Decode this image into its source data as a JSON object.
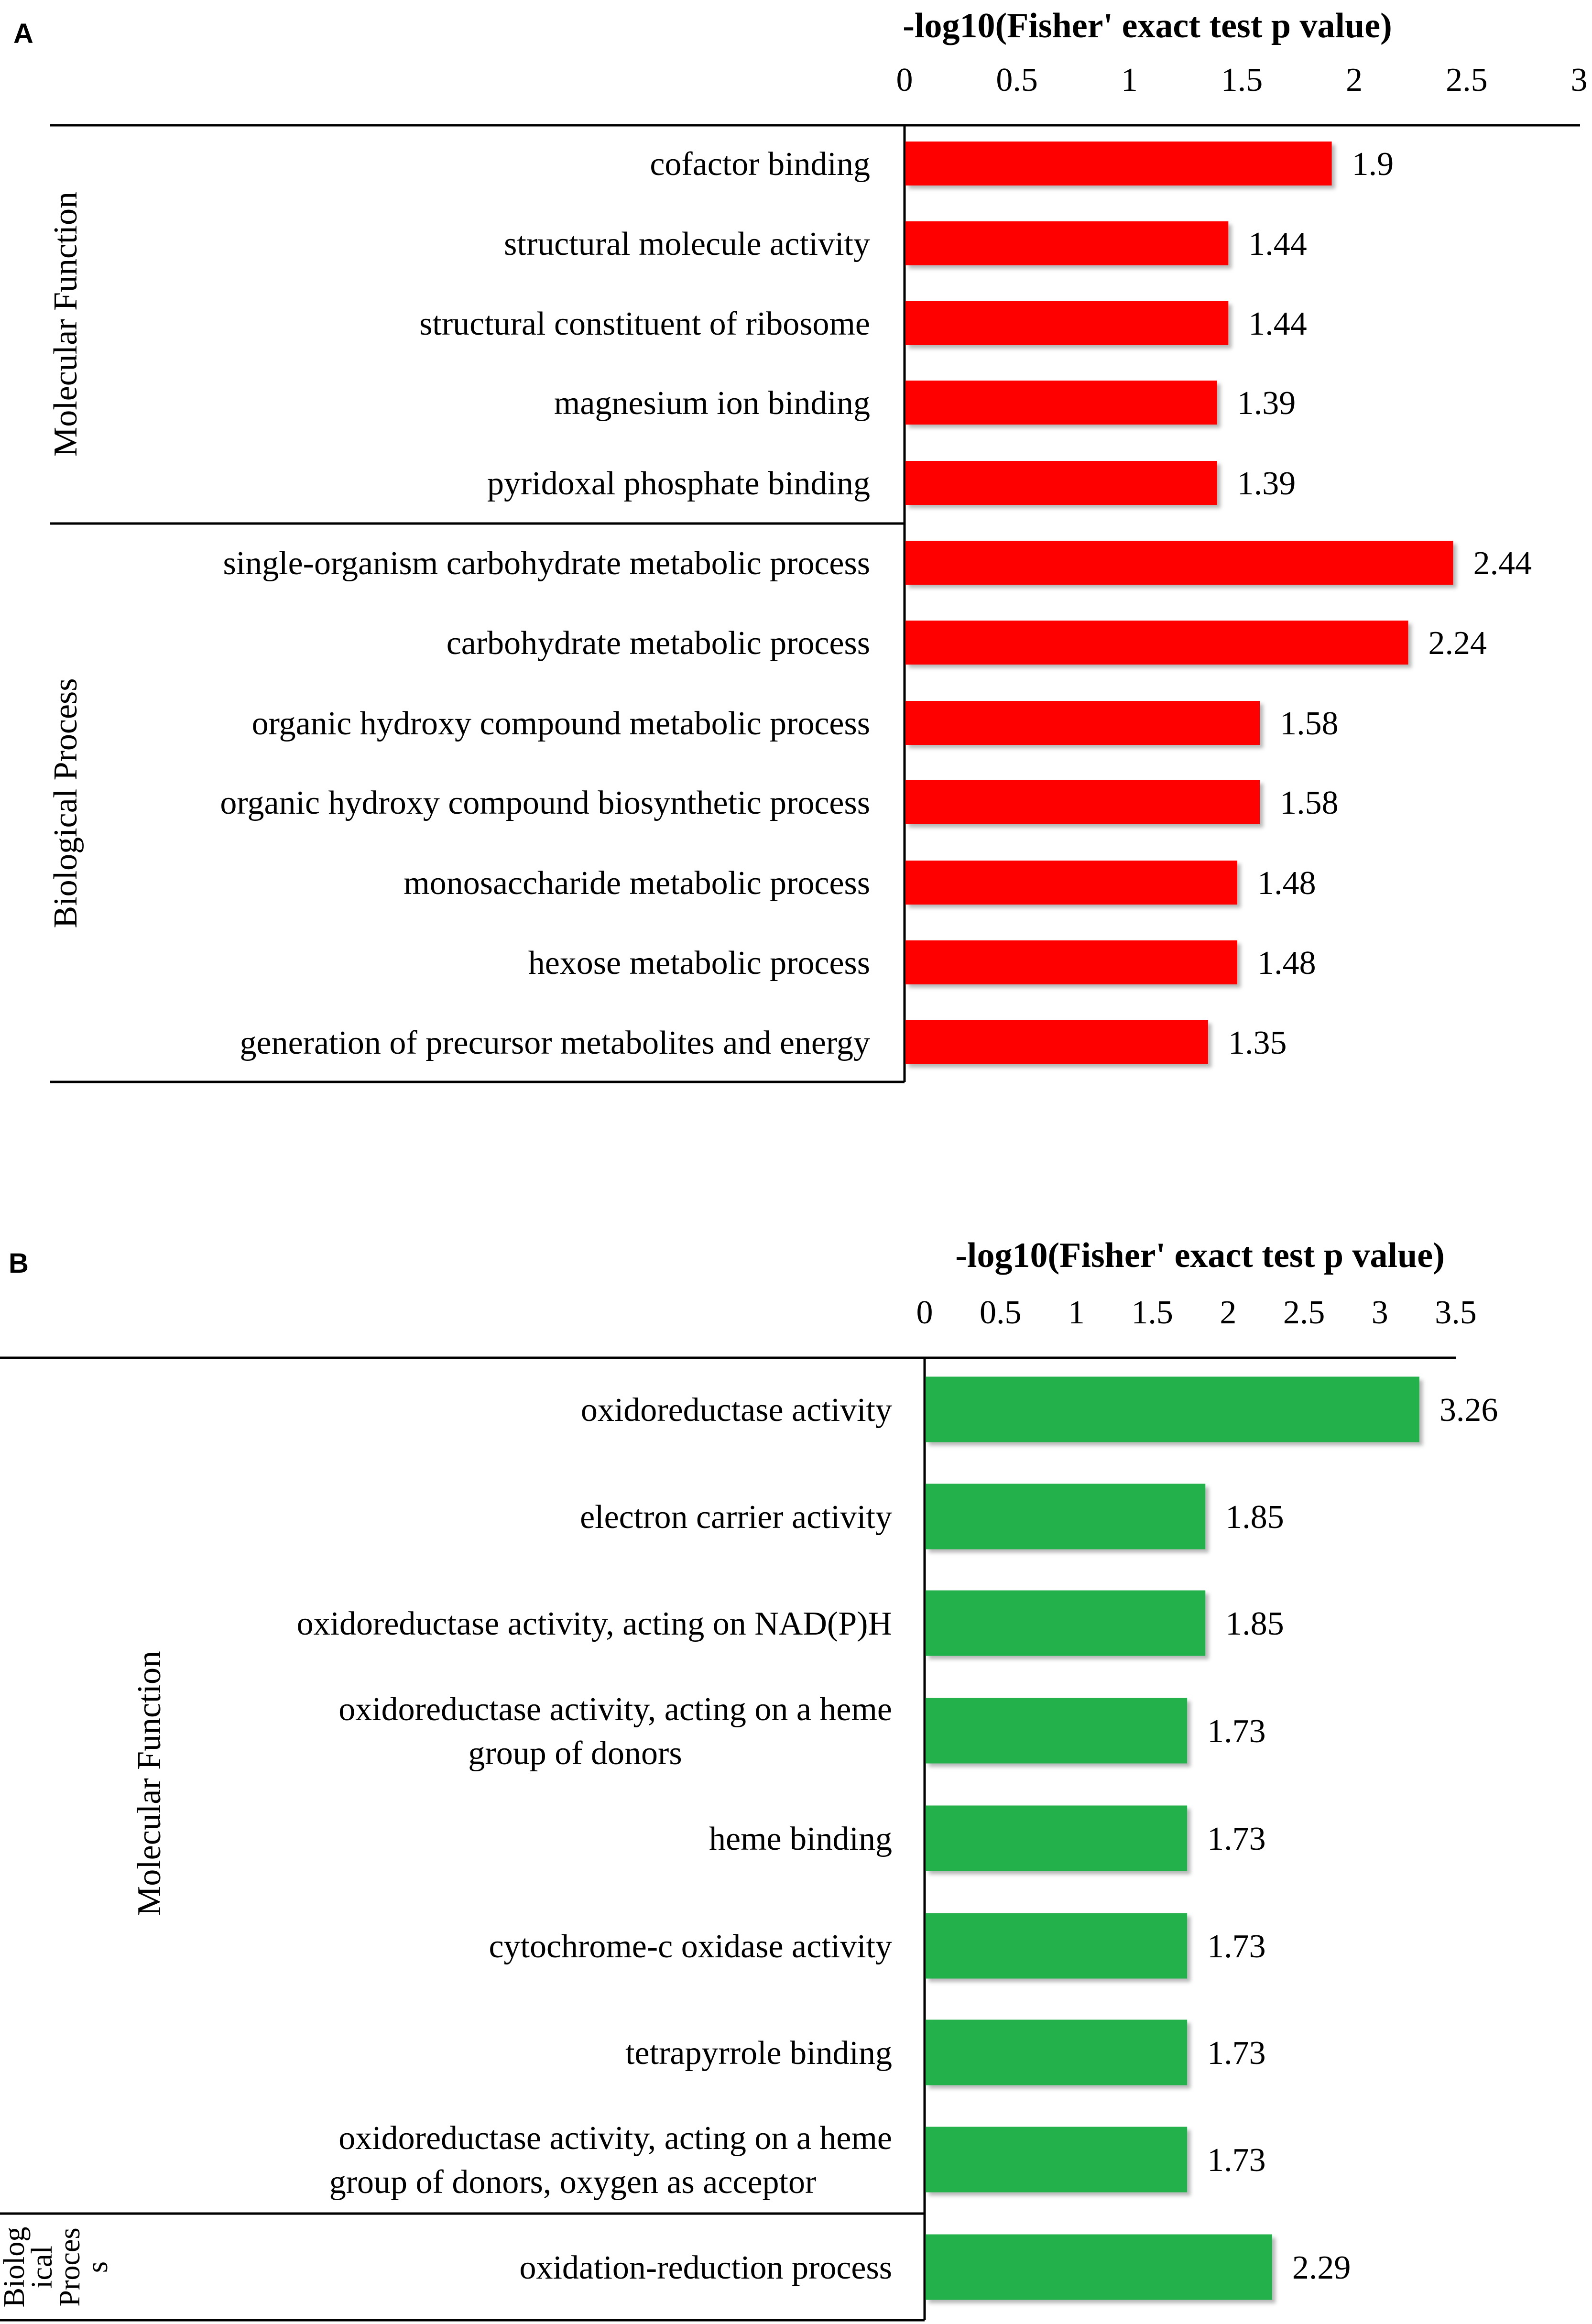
{
  "chart_data": [
    {
      "panel": "A",
      "type": "bar",
      "orientation": "horizontal",
      "title": "-log10(Fisher' exact test p value)",
      "xlim": [
        0,
        3
      ],
      "ticks": [
        "0",
        "0.5",
        "1",
        "1.5",
        "2",
        "2.5",
        "3"
      ],
      "bar_color": "#ff0000",
      "groups": [
        {
          "name": "Molecular Function",
          "name_lines": [
            "Molecular Function"
          ]
        },
        {
          "name": "Biological Process",
          "name_lines": [
            "Biological Process"
          ]
        }
      ],
      "bars": [
        {
          "group": 0,
          "label": "cofactor binding",
          "value": 1.9,
          "value_label": "1.9"
        },
        {
          "group": 0,
          "label": "structural molecule activity",
          "value": 1.44,
          "value_label": "1.44"
        },
        {
          "group": 0,
          "label": "structural constituent of ribosome",
          "value": 1.44,
          "value_label": "1.44"
        },
        {
          "group": 0,
          "label": "magnesium ion binding",
          "value": 1.39,
          "value_label": "1.39"
        },
        {
          "group": 0,
          "label": "pyridoxal phosphate binding",
          "value": 1.39,
          "value_label": "1.39"
        },
        {
          "group": 1,
          "label": "single-organism carbohydrate metabolic process",
          "value": 2.44,
          "value_label": "2.44"
        },
        {
          "group": 1,
          "label": "carbohydrate metabolic process",
          "value": 2.24,
          "value_label": "2.24"
        },
        {
          "group": 1,
          "label": "organic hydroxy compound metabolic process",
          "value": 1.58,
          "value_label": "1.58"
        },
        {
          "group": 1,
          "label": "organic hydroxy compound biosynthetic process",
          "value": 1.58,
          "value_label": "1.58"
        },
        {
          "group": 1,
          "label": "monosaccharide metabolic process",
          "value": 1.48,
          "value_label": "1.48"
        },
        {
          "group": 1,
          "label": "hexose metabolic process",
          "value": 1.48,
          "value_label": "1.48"
        },
        {
          "group": 1,
          "label": "generation of precursor metabolites and energy",
          "value": 1.35,
          "value_label": "1.35"
        }
      ]
    },
    {
      "panel": "B",
      "type": "bar",
      "orientation": "horizontal",
      "title": "-log10(Fisher' exact test p value)",
      "xlim": [
        0,
        3.5
      ],
      "ticks": [
        "0",
        "0.5",
        "1",
        "1.5",
        "2",
        "2.5",
        "3",
        "3.5"
      ],
      "bar_color": "#22b14c",
      "groups": [
        {
          "name": "Molecular Function",
          "name_lines": [
            "Molecular Function"
          ]
        },
        {
          "name": "Biological Process",
          "name_lines": [
            "Biolog",
            "ical",
            "Proces",
            "s"
          ]
        }
      ],
      "bars": [
        {
          "group": 0,
          "label": "oxidoreductase activity",
          "label_lines": [
            "oxidoreductase activity"
          ],
          "value": 3.26,
          "value_label": "3.26"
        },
        {
          "group": 0,
          "label": "electron carrier activity",
          "label_lines": [
            "electron carrier activity"
          ],
          "value": 1.85,
          "value_label": "1.85"
        },
        {
          "group": 0,
          "label": "oxidoreductase activity, acting on NAD(P)H",
          "label_lines": [
            "oxidoreductase activity, acting on NAD(P)H"
          ],
          "value": 1.85,
          "value_label": "1.85"
        },
        {
          "group": 0,
          "label": "oxidoreductase activity, acting on a heme group of donors",
          "label_lines": [
            "oxidoreductase activity, acting on a heme",
            "group of donors"
          ],
          "value": 1.73,
          "value_label": "1.73"
        },
        {
          "group": 0,
          "label": "heme binding",
          "label_lines": [
            "heme binding"
          ],
          "value": 1.73,
          "value_label": "1.73"
        },
        {
          "group": 0,
          "label": "cytochrome-c oxidase activity",
          "label_lines": [
            "cytochrome-c oxidase activity"
          ],
          "value": 1.73,
          "value_label": "1.73"
        },
        {
          "group": 0,
          "label": "tetrapyrrole binding",
          "label_lines": [
            "tetrapyrrole binding"
          ],
          "value": 1.73,
          "value_label": "1.73"
        },
        {
          "group": 0,
          "label": "oxidoreductase activity, acting on a heme group of donors, oxygen as acceptor",
          "label_lines": [
            "oxidoreductase activity, acting on a heme",
            "group of donors, oxygen as acceptor"
          ],
          "value": 1.73,
          "value_label": "1.73"
        },
        {
          "group": 1,
          "label": "oxidation-reduction process",
          "label_lines": [
            "oxidation-reduction process"
          ],
          "value": 2.29,
          "value_label": "2.29"
        }
      ]
    }
  ]
}
